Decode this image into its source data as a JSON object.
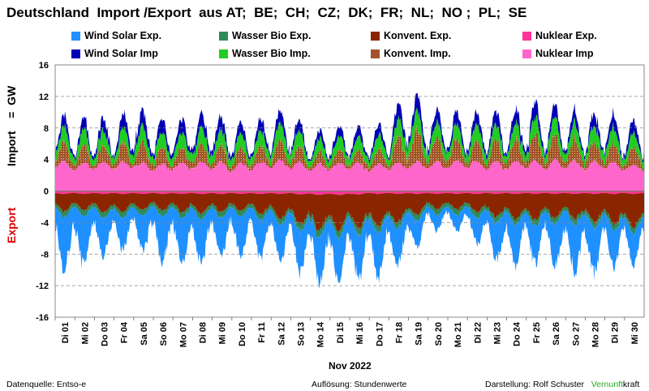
{
  "title": "Deutschland  Import /Export  aus AT;  BE;  CH;  CZ;  DK;  FR;  NL;  NO ;  PL;  SE",
  "ylabel_import": "Import    =  GW",
  "ylabel_export": "Export",
  "xlabel": "Nov 2022",
  "footer": {
    "left": "Datenquelle: Entso-e",
    "center": "Auflösung: Stundenwerte",
    "right_prefix": "Darstellung:  Rolf Schuster",
    "brand_green": "Vernunft",
    "brand_rest": "kraft"
  },
  "colors": {
    "wind_solar_exp": "#1e90ff",
    "wasser_bio_exp": "#2e8b57",
    "konvent_exp": "#8b2500",
    "nuklear_exp": "#ff3399",
    "wind_solar_imp": "#0000b4",
    "wasser_bio_imp": "#22cc22",
    "konvent_imp": "#a0522d",
    "nuklear_imp": "#ff66cc",
    "brand_green": "#22aa22"
  },
  "chart_data": {
    "type": "area",
    "x_unit": "day of November 2022 (hourly resolution)",
    "x_ticks": [
      "Di 01",
      "Mi 02",
      "Do 03",
      "Fr 04",
      "Sa 05",
      "So 06",
      "Mo 07",
      "Di 08",
      "Mi 09",
      "Do 10",
      "Fr 11",
      "Sa 12",
      "So 13",
      "Mo 14",
      "Di 15",
      "Mi 16",
      "Do 17",
      "Fr 18",
      "Sa 19",
      "So 20",
      "Mo 21",
      "Di 22",
      "Mi 23",
      "Do 24",
      "Fr 25",
      "Sa 26",
      "So 27",
      "Mo 28",
      "Di 29",
      "Mi 30"
    ],
    "ylim": [
      -16,
      16
    ],
    "y_ticks": [
      16,
      12,
      8,
      4,
      0,
      -4,
      -8,
      -12,
      -16
    ],
    "grid": true,
    "legend_position": "top",
    "legend": [
      {
        "name": "Wind Solar Exp.",
        "color_key": "wind_solar_exp"
      },
      {
        "name": "Wasser Bio Exp.",
        "color_key": "wasser_bio_exp"
      },
      {
        "name": "Konvent. Exp.",
        "color_key": "konvent_exp"
      },
      {
        "name": "Nuklear Exp.",
        "color_key": "nuklear_exp"
      },
      {
        "name": "Wind Solar Imp",
        "color_key": "wind_solar_imp"
      },
      {
        "name": "Wasser Bio Imp.",
        "color_key": "wasser_bio_imp"
      },
      {
        "name": "Konvent. Imp.",
        "color_key": "konvent_imp"
      },
      {
        "name": "Nuklear Imp",
        "color_key": "nuklear_imp"
      }
    ],
    "daily_estimates_GW": {
      "import_nuklear": [
        3.5,
        3.0,
        3.3,
        3.2,
        3.4,
        3.0,
        3.1,
        3.2,
        3.3,
        3.0,
        3.2,
        3.4,
        3.3,
        3.0,
        3.1,
        3.2,
        3.0,
        3.1,
        3.4,
        3.2,
        3.3,
        3.5,
        3.3,
        3.2,
        3.4,
        3.3,
        3.5,
        3.2,
        3.4,
        3.0
      ],
      "import_konvent": [
        1.5,
        1.4,
        1.3,
        1.5,
        1.6,
        1.5,
        1.2,
        1.4,
        1.5,
        1.3,
        1.2,
        1.4,
        1.6,
        1.0,
        0.9,
        1.1,
        1.0,
        1.3,
        3.0,
        2.0,
        1.8,
        1.5,
        1.7,
        1.6,
        2.0,
        2.2,
        1.8,
        1.5,
        1.6,
        1.5
      ],
      "import_wasser_bio": [
        1.5,
        1.4,
        1.5,
        1.3,
        1.6,
        1.5,
        1.4,
        1.5,
        1.6,
        1.3,
        1.4,
        1.6,
        1.7,
        1.2,
        1.3,
        1.4,
        1.3,
        1.5,
        2.0,
        1.6,
        1.4,
        1.5,
        1.6,
        1.5,
        1.6,
        1.7,
        1.6,
        1.5,
        1.6,
        1.4
      ],
      "import_wind_solar": [
        1.0,
        0.8,
        1.0,
        0.9,
        1.4,
        1.2,
        1.0,
        1.1,
        1.2,
        0.9,
        0.8,
        1.0,
        1.1,
        0.6,
        0.8,
        0.9,
        0.8,
        1.0,
        1.4,
        1.1,
        0.9,
        1.0,
        1.1,
        1.0,
        1.3,
        1.1,
        1.0,
        0.9,
        1.1,
        1.0
      ],
      "export_nuklear": [
        -0.3,
        -0.3,
        -0.3,
        -0.3,
        -0.3,
        -0.3,
        -0.3,
        -0.3,
        -0.3,
        -0.3,
        -0.3,
        -0.3,
        -0.3,
        -0.4,
        -0.4,
        -0.4,
        -0.3,
        -0.3,
        -0.3,
        -0.3,
        -0.3,
        -0.3,
        -0.3,
        -0.3,
        -0.3,
        -0.3,
        -0.3,
        -0.3,
        -0.3,
        -0.3
      ],
      "export_konvent": [
        -1.8,
        -1.7,
        -1.8,
        -2.0,
        -1.7,
        -1.6,
        -1.8,
        -2.0,
        -1.9,
        -1.8,
        -1.8,
        -2.2,
        -2.8,
        -3.5,
        -3.8,
        -3.6,
        -3.4,
        -3.2,
        -2.6,
        -1.6,
        -1.5,
        -1.6,
        -2.2,
        -2.6,
        -2.8,
        -2.6,
        -2.4,
        -2.8,
        -3.0,
        -3.4
      ],
      "export_wasser_bio": [
        -0.6,
        -0.6,
        -0.6,
        -0.6,
        -0.6,
        -0.6,
        -0.6,
        -0.6,
        -0.6,
        -0.6,
        -0.6,
        -0.6,
        -0.6,
        -0.7,
        -0.7,
        -0.7,
        -0.7,
        -0.6,
        -0.6,
        -0.6,
        -0.6,
        -0.6,
        -0.6,
        -0.6,
        -0.6,
        -0.6,
        -0.6,
        -0.6,
        -0.6,
        -0.6
      ],
      "export_wind_solar": [
        -4.2,
        -4.8,
        -3.5,
        -3.0,
        -2.5,
        -3.8,
        -4.0,
        -4.2,
        -3.6,
        -3.3,
        -3.6,
        -3.0,
        -3.4,
        -3.8,
        -4.2,
        -3.8,
        -4.0,
        -3.5,
        -3.0,
        -1.5,
        -1.2,
        -1.6,
        -3.0,
        -3.6,
        -3.2,
        -3.4,
        -4.0,
        -4.2,
        -3.6,
        -2.8
      ]
    }
  }
}
